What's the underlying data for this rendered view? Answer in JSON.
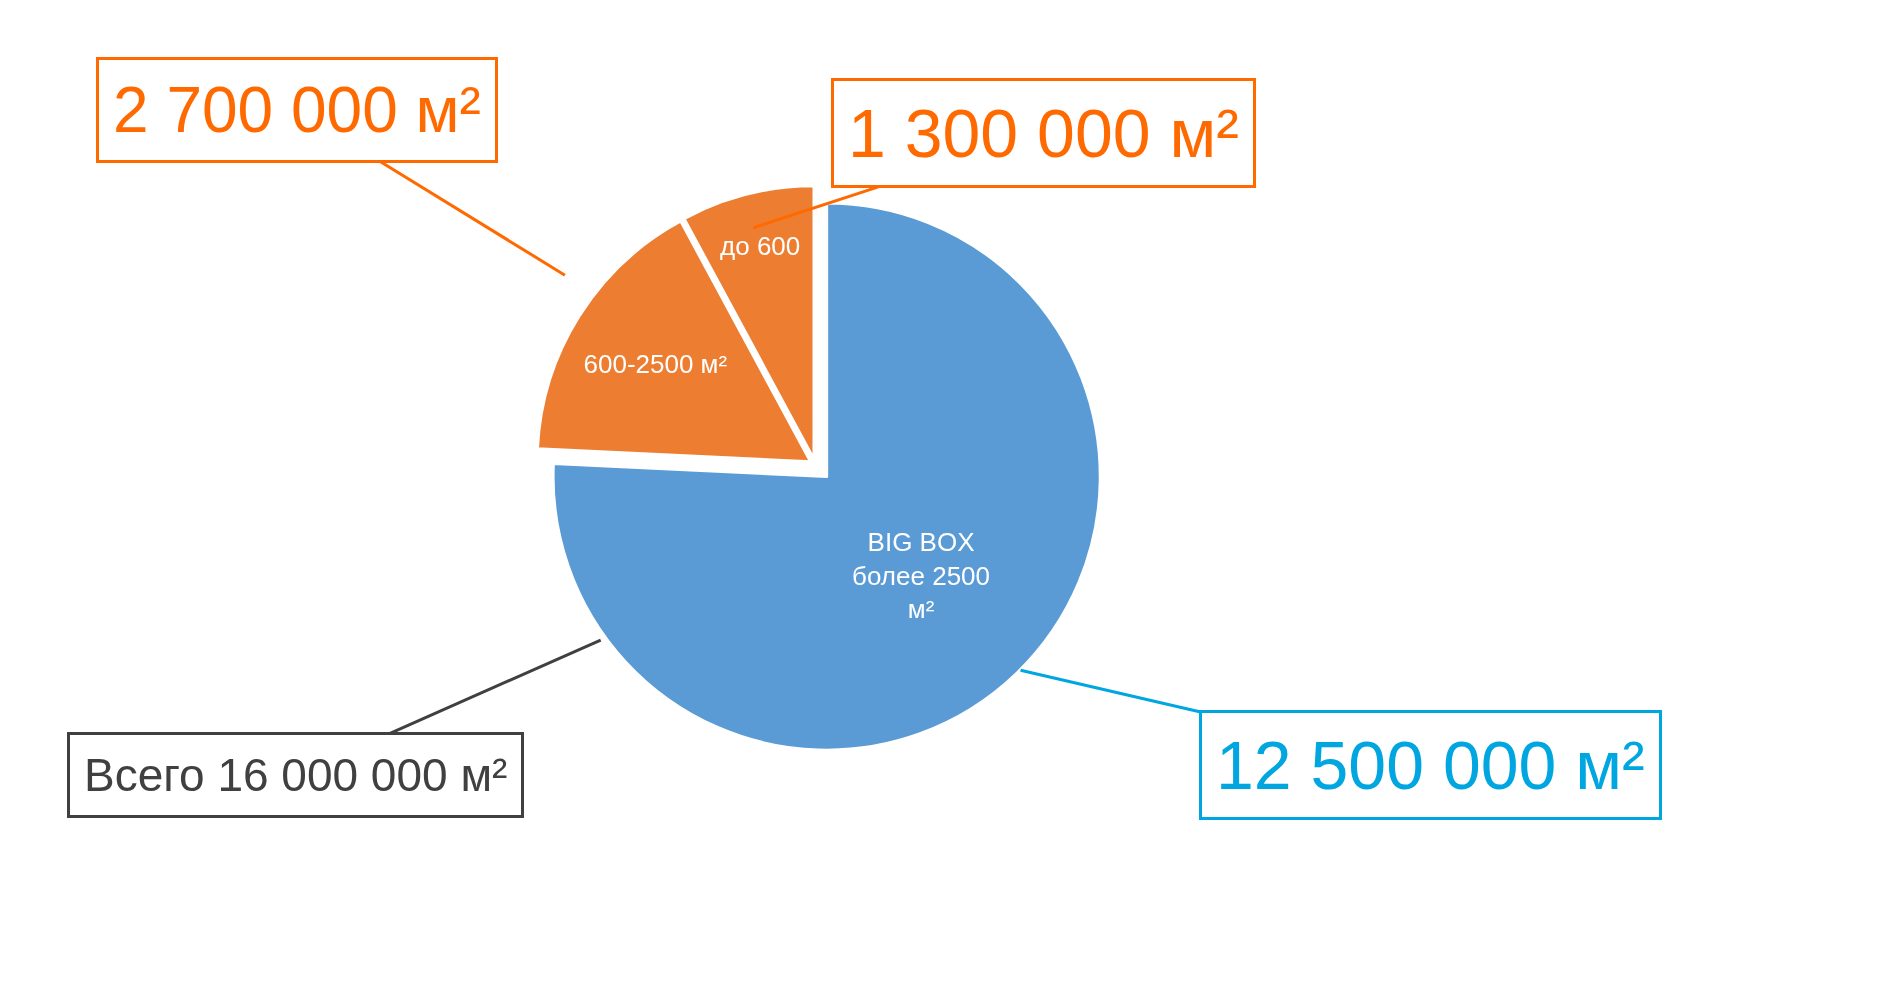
{
  "chart_data": {
    "type": "pie",
    "categories": [
      "BIG BOX более 2500 м²",
      "600-2500 м²",
      "до 600"
    ],
    "values": [
      12500000,
      2700000,
      1300000
    ],
    "colors": [
      "#5b9bd5",
      "#ed7d31",
      "#ed7d31"
    ],
    "value_labels": [
      "12 500 000 м²",
      "2 700 000 м²",
      "1 300 000 м²"
    ],
    "annotations": [
      "Всего 16 000 000 м²"
    ],
    "legend": false
  }
}
